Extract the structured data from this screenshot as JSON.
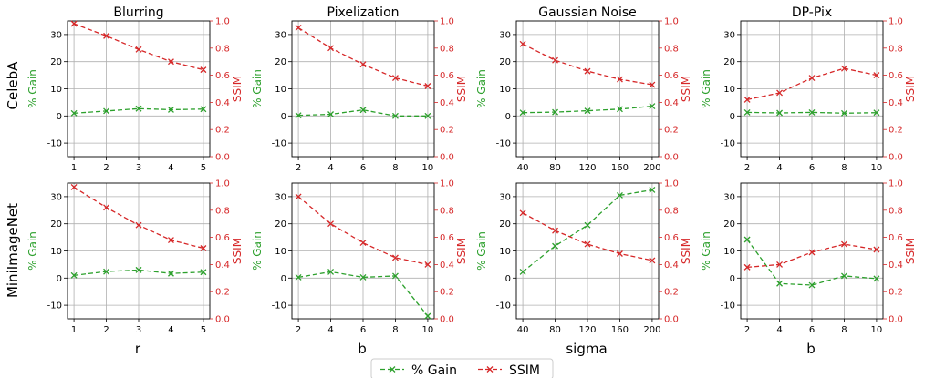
{
  "colors": {
    "gain": "#2ca02c",
    "ssim": "#d62728",
    "grid": "#b0b0b0",
    "axis": "#000000"
  },
  "legend": {
    "gain_label": "% Gain",
    "ssim_label": "SSIM",
    "placement": "bottom-center"
  },
  "row_labels": [
    "CelebA",
    "MiniImageNet"
  ],
  "col_xlabels": [
    "r",
    "b",
    "sigma",
    "b"
  ],
  "chart_data": [
    {
      "type": "line",
      "title": "Blurring",
      "dataset": "CelebA",
      "xlabel": "",
      "ylabel": "% Gain",
      "ylabel2": "SSIM",
      "x": [
        1,
        2,
        3,
        4,
        5
      ],
      "xticks": [
        1,
        2,
        3,
        4,
        5
      ],
      "xlim": [
        0.8,
        5.2
      ],
      "ylim": [
        -15,
        35
      ],
      "yticks": [
        -10,
        0,
        10,
        20,
        30
      ],
      "ylim2": [
        0,
        1
      ],
      "yticks2": [
        0,
        0.2,
        0.4,
        0.6,
        0.8,
        1.0
      ],
      "grid": true,
      "series": [
        {
          "name": "% Gain",
          "axis": "left",
          "values": [
            1.0,
            1.8,
            2.7,
            2.3,
            2.5
          ]
        },
        {
          "name": "SSIM",
          "axis": "right",
          "values": [
            0.98,
            0.89,
            0.79,
            0.7,
            0.64
          ]
        }
      ]
    },
    {
      "type": "line",
      "title": "Pixelization",
      "dataset": "CelebA",
      "xlabel": "",
      "ylabel": "% Gain",
      "ylabel2": "SSIM",
      "x": [
        2,
        4,
        6,
        8,
        10
      ],
      "xticks": [
        2,
        4,
        6,
        8,
        10
      ],
      "xlim": [
        1.6,
        10.4
      ],
      "ylim": [
        -15,
        35
      ],
      "yticks": [
        -10,
        0,
        10,
        20,
        30
      ],
      "ylim2": [
        0,
        1
      ],
      "yticks2": [
        0,
        0.2,
        0.4,
        0.6,
        0.8,
        1.0
      ],
      "grid": true,
      "series": [
        {
          "name": "% Gain",
          "axis": "left",
          "values": [
            0.2,
            0.6,
            2.2,
            0.0,
            0.0
          ]
        },
        {
          "name": "SSIM",
          "axis": "right",
          "values": [
            0.95,
            0.8,
            0.68,
            0.58,
            0.52
          ]
        }
      ]
    },
    {
      "type": "line",
      "title": "Gaussian Noise",
      "dataset": "CelebA",
      "xlabel": "",
      "ylabel": "% Gain",
      "ylabel2": "SSIM",
      "x": [
        40,
        80,
        120,
        160,
        200
      ],
      "xticks": [
        40,
        80,
        120,
        160,
        200
      ],
      "xlim": [
        32,
        208
      ],
      "ylim": [
        -15,
        35
      ],
      "yticks": [
        -10,
        0,
        10,
        20,
        30
      ],
      "ylim2": [
        0,
        1
      ],
      "yticks2": [
        0,
        0.2,
        0.4,
        0.6,
        0.8,
        1.0
      ],
      "grid": true,
      "series": [
        {
          "name": "% Gain",
          "axis": "left",
          "values": [
            1.2,
            1.4,
            1.9,
            2.5,
            3.6
          ]
        },
        {
          "name": "SSIM",
          "axis": "right",
          "values": [
            0.83,
            0.71,
            0.63,
            0.57,
            0.53
          ]
        }
      ]
    },
    {
      "type": "line",
      "title": "DP-Pix",
      "dataset": "CelebA",
      "xlabel": "",
      "ylabel": "% Gain",
      "ylabel2": "SSIM",
      "x": [
        2,
        4,
        6,
        8,
        10
      ],
      "xticks": [
        2,
        4,
        6,
        8,
        10
      ],
      "xlim": [
        1.6,
        10.4
      ],
      "ylim": [
        -15,
        35
      ],
      "yticks": [
        -10,
        0,
        10,
        20,
        30
      ],
      "ylim2": [
        0,
        1
      ],
      "yticks2": [
        0,
        0.2,
        0.4,
        0.6,
        0.8,
        1.0
      ],
      "grid": true,
      "series": [
        {
          "name": "% Gain",
          "axis": "left",
          "values": [
            1.3,
            1.1,
            1.3,
            1.0,
            1.2
          ]
        },
        {
          "name": "SSIM",
          "axis": "right",
          "values": [
            0.42,
            0.47,
            0.58,
            0.65,
            0.6
          ]
        }
      ]
    },
    {
      "type": "line",
      "title": "",
      "dataset": "MiniImageNet",
      "xlabel": "r",
      "ylabel": "% Gain",
      "ylabel2": "SSIM",
      "x": [
        1,
        2,
        3,
        4,
        5
      ],
      "xticks": [
        1,
        2,
        3,
        4,
        5
      ],
      "xlim": [
        0.8,
        5.2
      ],
      "ylim": [
        -15,
        35
      ],
      "yticks": [
        -10,
        0,
        10,
        20,
        30
      ],
      "ylim2": [
        0,
        1
      ],
      "yticks2": [
        0,
        0.2,
        0.4,
        0.6,
        0.8,
        1.0
      ],
      "grid": true,
      "series": [
        {
          "name": "% Gain",
          "axis": "left",
          "values": [
            1.0,
            2.4,
            3.0,
            1.7,
            2.2
          ]
        },
        {
          "name": "SSIM",
          "axis": "right",
          "values": [
            0.97,
            0.82,
            0.69,
            0.58,
            0.52
          ]
        }
      ]
    },
    {
      "type": "line",
      "title": "",
      "dataset": "MiniImageNet",
      "xlabel": "b",
      "ylabel": "% Gain",
      "ylabel2": "SSIM",
      "x": [
        2,
        4,
        6,
        8,
        10
      ],
      "xticks": [
        2,
        4,
        6,
        8,
        10
      ],
      "xlim": [
        1.6,
        10.4
      ],
      "ylim": [
        -15,
        35
      ],
      "yticks": [
        -10,
        0,
        10,
        20,
        30
      ],
      "ylim2": [
        0,
        1
      ],
      "yticks2": [
        0,
        0.2,
        0.4,
        0.6,
        0.8,
        1.0
      ],
      "grid": true,
      "series": [
        {
          "name": "% Gain",
          "axis": "left",
          "values": [
            0.3,
            2.3,
            0.3,
            0.8,
            -14.0
          ]
        },
        {
          "name": "SSIM",
          "axis": "right",
          "values": [
            0.9,
            0.7,
            0.56,
            0.45,
            0.4
          ]
        }
      ]
    },
    {
      "type": "line",
      "title": "",
      "dataset": "MiniImageNet",
      "xlabel": "sigma",
      "ylabel": "% Gain",
      "ylabel2": "SSIM",
      "x": [
        40,
        80,
        120,
        160,
        200
      ],
      "xticks": [
        40,
        80,
        120,
        160,
        200
      ],
      "xlim": [
        32,
        208
      ],
      "ylim": [
        -15,
        35
      ],
      "yticks": [
        -10,
        0,
        10,
        20,
        30
      ],
      "ylim2": [
        0,
        1
      ],
      "yticks2": [
        0,
        0.2,
        0.4,
        0.6,
        0.8,
        1.0
      ],
      "grid": true,
      "series": [
        {
          "name": "% Gain",
          "axis": "left",
          "values": [
            2.3,
            11.8,
            19.5,
            30.5,
            32.5
          ]
        },
        {
          "name": "SSIM",
          "axis": "right",
          "values": [
            0.78,
            0.65,
            0.55,
            0.48,
            0.43
          ]
        }
      ]
    },
    {
      "type": "line",
      "title": "",
      "dataset": "MiniImageNet",
      "xlabel": "b",
      "ylabel": "% Gain",
      "ylabel2": "SSIM",
      "x": [
        2,
        4,
        6,
        8,
        10
      ],
      "xticks": [
        2,
        4,
        6,
        8,
        10
      ],
      "xlim": [
        1.6,
        10.4
      ],
      "ylim": [
        -15,
        35
      ],
      "yticks": [
        -10,
        0,
        10,
        20,
        30
      ],
      "ylim2": [
        0,
        1
      ],
      "yticks2": [
        0,
        0.2,
        0.4,
        0.6,
        0.8,
        1.0
      ],
      "grid": true,
      "series": [
        {
          "name": "% Gain",
          "axis": "left",
          "values": [
            14.2,
            -2.0,
            -2.6,
            0.8,
            -0.2
          ]
        },
        {
          "name": "SSIM",
          "axis": "right",
          "values": [
            0.38,
            0.4,
            0.49,
            0.55,
            0.51
          ]
        }
      ]
    }
  ]
}
